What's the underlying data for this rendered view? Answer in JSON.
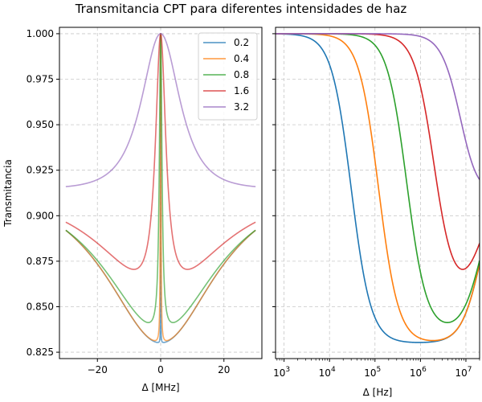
{
  "figure": {
    "title": "Transmitancia CPT para diferentes intensidades de haz"
  },
  "chart_data": [
    {
      "type": "line",
      "panel": "left",
      "xlabel": "Δ [MHz]",
      "ylabel": "Transmitancia",
      "xlim": [
        -32,
        32
      ],
      "ylim": [
        0.8215,
        1.0035
      ],
      "xticks": [
        -20,
        0,
        20
      ],
      "xtick_labels": [
        "−20",
        "0",
        "20"
      ],
      "yticks": [
        0.825,
        0.85,
        0.875,
        0.9,
        0.925,
        0.95,
        0.975,
        1.0
      ],
      "ytick_labels": [
        "0.825",
        "0.850",
        "0.875",
        "0.900",
        "0.925",
        "0.950",
        "0.975",
        "1.000"
      ],
      "grid": true,
      "legend_position": "top-right",
      "series": [
        {
          "name": "0.2",
          "color": "#1f77b4",
          "dark_width_mhz": 0.03,
          "bright_width_mhz": 30,
          "peak": 1.0,
          "floor": 0.83,
          "edge_value": 0.892
        },
        {
          "name": "0.4",
          "color": "#ff7f0e",
          "dark_width_mhz": 0.12,
          "bright_width_mhz": 30,
          "peak": 1.0,
          "floor": 0.83,
          "edge_value": 0.892
        },
        {
          "name": "0.8",
          "color": "#2ca02c",
          "dark_width_mhz": 0.5,
          "bright_width_mhz": 30,
          "peak": 1.0,
          "floor": 0.836,
          "edge_value": 0.892
        },
        {
          "name": "1.6",
          "color": "#d62728",
          "dark_width_mhz": 2.0,
          "bright_width_mhz": 30,
          "peak": 1.0,
          "floor": 0.855,
          "edge_value": 0.896
        },
        {
          "name": "3.2",
          "color": "#9467bd",
          "dark_width_mhz": 8.0,
          "bright_width_mhz": 30,
          "peak": 1.0,
          "floor": 0.9,
          "edge_value": 0.91
        }
      ]
    },
    {
      "type": "line",
      "panel": "right",
      "xlabel": "Δ [Hz]",
      "xscale": "log",
      "xlim": [
        650,
        20000000
      ],
      "ylim": [
        0.8215,
        1.0035
      ],
      "xticks": [
        1000,
        10000,
        100000,
        1000000,
        10000000
      ],
      "xtick_labels": [
        {
          "base": "10",
          "exp": "3"
        },
        {
          "base": "10",
          "exp": "4"
        },
        {
          "base": "10",
          "exp": "5"
        },
        {
          "base": "10",
          "exp": "6"
        },
        {
          "base": "10",
          "exp": "7"
        }
      ],
      "yticks": [
        0.825,
        0.85,
        0.875,
        0.9,
        0.925,
        0.95,
        0.975,
        1.0
      ],
      "grid": true,
      "series": [
        {
          "name": "0.2",
          "color": "#1f77b4"
        },
        {
          "name": "0.4",
          "color": "#ff7f0e"
        },
        {
          "name": "0.8",
          "color": "#2ca02c"
        },
        {
          "name": "1.6",
          "color": "#d62728"
        },
        {
          "name": "3.2",
          "color": "#9467bd"
        }
      ]
    }
  ]
}
